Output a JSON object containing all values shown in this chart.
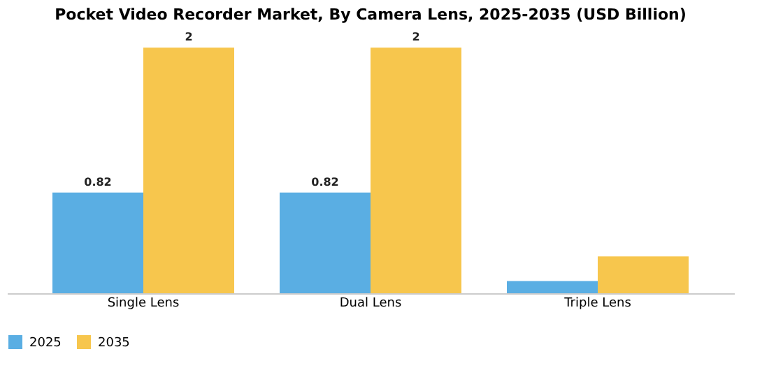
{
  "chart_data": {
    "type": "bar",
    "title": "Pocket Video Recorder Market, By Camera Lens, 2025-2035 (USD Billion)",
    "categories": [
      "Single Lens",
      "Dual Lens",
      "Triple Lens"
    ],
    "series": [
      {
        "name": "2025",
        "color": "#5aaee3",
        "values": [
          0.82,
          0.82,
          0.1
        ],
        "value_labels": [
          "0.82",
          "0.82",
          null
        ]
      },
      {
        "name": "2035",
        "color": "#f7c64d",
        "values": [
          2,
          2,
          0.3
        ],
        "value_labels": [
          "2",
          "2",
          null
        ]
      }
    ],
    "legend": "bottom",
    "grid": false
  }
}
